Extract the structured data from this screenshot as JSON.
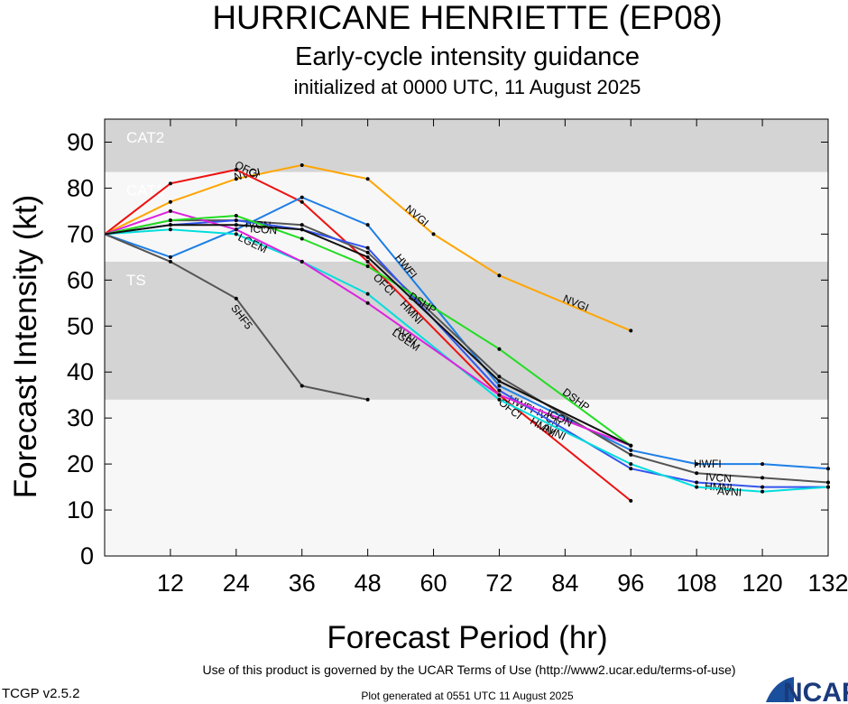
{
  "header": {
    "title": "HURRICANE HENRIETTE (EP08)",
    "subtitle": "Early-cycle intensity guidance",
    "init": "initialized at 0000 UTC, 11 August 2025"
  },
  "footer": {
    "terms": "Use of this product is governed by the UCAR Terms of Use (http://www2.ucar.edu/terms-of-use)",
    "generated": "Plot generated at 0551 UTC   11 August 2025",
    "version": "TCGP v2.5.2",
    "logo": "NCAR"
  },
  "colors": {
    "band": "#d4d4d4",
    "plot_bg": "#f7f7f7",
    "band_text": "#ffffff"
  },
  "chart_data": {
    "type": "line",
    "xlabel": "Forecast Period (hr)",
    "ylabel": "Forecast Intensity (kt)",
    "xlim": [
      0,
      132
    ],
    "ylim": [
      0,
      95
    ],
    "xticks": [
      12,
      24,
      36,
      48,
      60,
      72,
      84,
      96,
      108,
      120,
      132
    ],
    "yticks": [
      0,
      10,
      20,
      30,
      40,
      50,
      60,
      70,
      80,
      90
    ],
    "bands": [
      {
        "label": "CAT2",
        "ymin": 83.5,
        "ymax": 95,
        "shaded": true
      },
      {
        "label": "CAT1",
        "ymin": 64,
        "ymax": 83.5,
        "shaded": false
      },
      {
        "label": "TS",
        "ymin": 34,
        "ymax": 64,
        "shaded": true
      }
    ],
    "series": [
      {
        "name": "NVGI",
        "color": "#ffa500",
        "x": [
          0,
          12,
          24,
          36,
          48,
          60,
          72,
          96
        ],
        "y": [
          70,
          77,
          82,
          85,
          82,
          70,
          61,
          49
        ],
        "labels": [
          {
            "x": 26,
            "y": 83
          },
          {
            "x": 57,
            "y": 74
          },
          {
            "x": 86,
            "y": 55
          }
        ]
      },
      {
        "name": "OFCI",
        "color": "#ee1111",
        "x": [
          0,
          12,
          24,
          36,
          48,
          72,
          96
        ],
        "y": [
          70,
          81,
          84,
          77,
          64,
          35,
          12
        ],
        "labels": [
          {
            "x": 26,
            "y": 84
          },
          {
            "x": 51,
            "y": 59
          },
          {
            "x": 74,
            "y": 32
          }
        ]
      },
      {
        "name": "HWFI",
        "color": "#1e7fe6",
        "x": [
          0,
          12,
          24,
          36,
          48,
          72,
          96,
          108,
          120,
          132
        ],
        "y": [
          70,
          65,
          71,
          78,
          72,
          37,
          23,
          20,
          20,
          19
        ],
        "labels": [
          {
            "x": 55,
            "y": 63
          },
          {
            "x": 76,
            "y": 33
          },
          {
            "x": 110,
            "y": 20
          }
        ]
      },
      {
        "name": "IVCN",
        "color": "#555555",
        "x": [
          0,
          12,
          24,
          36,
          48,
          72,
          96,
          108,
          120,
          132
        ],
        "y": [
          70,
          73,
          73,
          72,
          66,
          39,
          22,
          18,
          17,
          16
        ],
        "labels": [
          {
            "x": 28,
            "y": 72
          },
          {
            "x": 81,
            "y": 30
          },
          {
            "x": 112,
            "y": 17
          }
        ]
      },
      {
        "name": "HMNI",
        "color": "#3355ee",
        "x": [
          0,
          12,
          24,
          36,
          48,
          72,
          96,
          108,
          120,
          132
        ],
        "y": [
          70,
          72,
          73,
          71,
          67,
          36,
          19,
          16,
          15,
          15
        ],
        "labels": [
          {
            "x": 56,
            "y": 53
          },
          {
            "x": 80,
            "y": 28
          },
          {
            "x": 112,
            "y": 15
          }
        ]
      },
      {
        "name": "AVNI",
        "color": "#00dddd",
        "x": [
          0,
          12,
          24,
          36,
          48,
          72,
          96,
          108,
          120,
          132
        ],
        "y": [
          70,
          71,
          70,
          64,
          57,
          34,
          20,
          15,
          14,
          15
        ],
        "labels": [
          {
            "x": 55,
            "y": 48
          },
          {
            "x": 82,
            "y": 27
          },
          {
            "x": 114,
            "y": 14
          }
        ]
      },
      {
        "name": "LGEM",
        "color": "#dd22dd",
        "x": [
          0,
          12,
          24,
          36,
          48,
          72,
          96
        ],
        "y": [
          70,
          75,
          71,
          64,
          55,
          35,
          24
        ],
        "labels": [
          {
            "x": 27,
            "y": 68
          },
          {
            "x": 55,
            "y": 47
          }
        ]
      },
      {
        "name": "DSHP",
        "color": "#22dd22",
        "x": [
          0,
          12,
          24,
          36,
          48,
          72,
          96
        ],
        "y": [
          70,
          73,
          74,
          69,
          63,
          45,
          24
        ],
        "labels": [
          {
            "x": 58,
            "y": 55
          },
          {
            "x": 86,
            "y": 34
          }
        ]
      },
      {
        "name": "SHF5",
        "color": "#555555",
        "x": [
          0,
          12,
          24,
          36,
          48
        ],
        "y": [
          70,
          64,
          56,
          37,
          34
        ],
        "labels": [
          {
            "x": 25,
            "y": 52
          }
        ]
      },
      {
        "name": "ICON",
        "color": "#111111",
        "x": [
          0,
          12,
          24,
          36,
          48,
          72,
          96
        ],
        "y": [
          70,
          72,
          72,
          71,
          65,
          38,
          24
        ],
        "labels": [
          {
            "x": 29,
            "y": 71
          },
          {
            "x": 83,
            "y": 30
          }
        ]
      }
    ]
  }
}
